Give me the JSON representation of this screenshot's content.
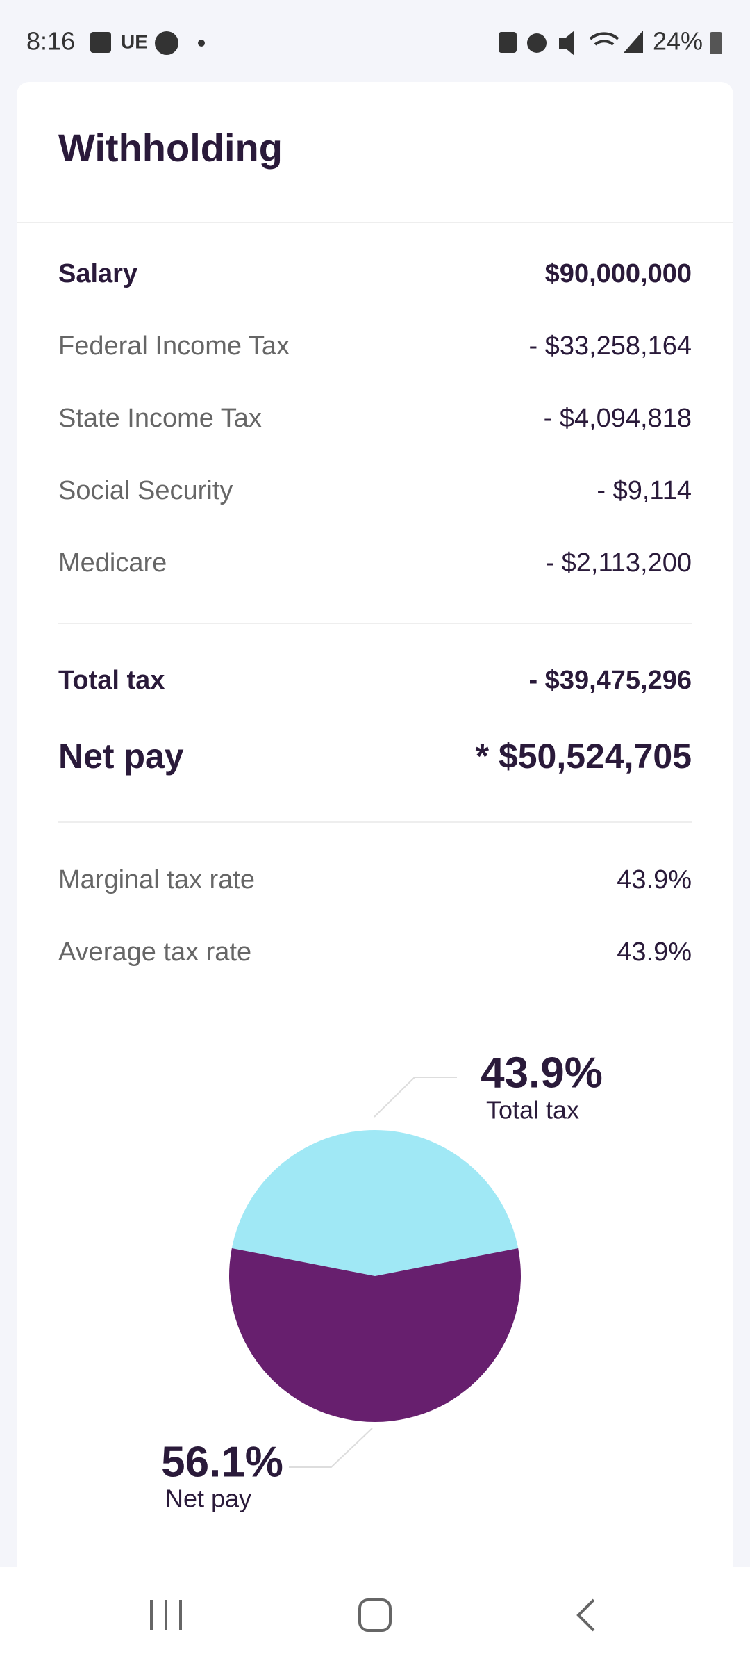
{
  "status_bar": {
    "time": "8:16",
    "carrier": "UE",
    "battery": "24%"
  },
  "card": {
    "title": "Withholding",
    "rows": [
      {
        "label": "Salary",
        "value": "$90,000,000"
      },
      {
        "label": "Federal Income Tax",
        "value": "- $33,258,164"
      },
      {
        "label": "State Income Tax",
        "value": "- $4,094,818"
      },
      {
        "label": "Social Security",
        "value": "- $9,114"
      },
      {
        "label": "Medicare",
        "value": "- $2,113,200"
      }
    ],
    "totals": [
      {
        "label": "Total tax",
        "value": "- $39,475,296"
      },
      {
        "label": "Net pay",
        "value": "* $50,524,705"
      }
    ],
    "rates": [
      {
        "label": "Marginal tax rate",
        "value": "43.9%"
      },
      {
        "label": "Average tax rate",
        "value": "43.9%"
      }
    ]
  },
  "chart_data": {
    "type": "pie",
    "categories": [
      "Total tax",
      "Net pay"
    ],
    "values": [
      43.9,
      56.1
    ],
    "value_labels": [
      "43.9%",
      "56.1%"
    ],
    "colors": [
      "#a0e8f5",
      "#671f6e"
    ]
  }
}
